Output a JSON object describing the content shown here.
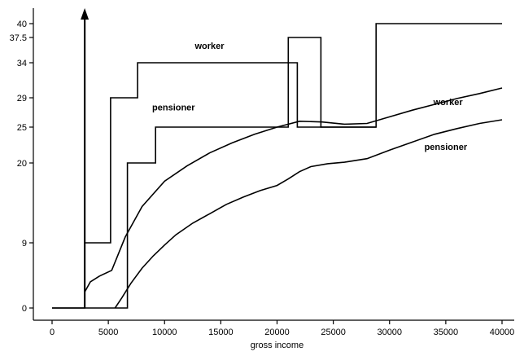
{
  "chart_data": {
    "type": "line",
    "title": "",
    "xlabel": "gross income",
    "ylabel": "",
    "xlim": [
      -200,
      40200
    ],
    "x_ticks": [
      0,
      5000,
      10000,
      15000,
      20000,
      25000,
      30000,
      35000,
      40000
    ],
    "x_tick_labels": [
      "0",
      "5000",
      "10000",
      "15000",
      "20000",
      "25000",
      "30000",
      "35000",
      "40000"
    ],
    "y_ticks": [
      0,
      9,
      20,
      25,
      29,
      34,
      37.5,
      40
    ],
    "y_tick_labels": [
      "0",
      "9",
      "20",
      "25",
      "29",
      "34",
      "37.5",
      "40"
    ],
    "grid": false,
    "series": [
      {
        "name": "worker",
        "kind": "marginal-step",
        "label_at": [
          14000,
          35.9
        ],
        "points": [
          [
            0,
            0
          ],
          [
            2900,
            0
          ],
          [
            2900,
            9
          ],
          [
            5200,
            9
          ],
          [
            5200,
            29
          ],
          [
            7600,
            29
          ],
          [
            7600,
            34
          ],
          [
            21800,
            34
          ],
          [
            21800,
            25
          ],
          [
            28800,
            25
          ],
          [
            28800,
            40
          ],
          [
            40000,
            40
          ]
        ]
      },
      {
        "name": "pensioner",
        "kind": "marginal-step",
        "label_at": [
          10800,
          27.3
        ],
        "points": [
          [
            0,
            0
          ],
          [
            6700,
            0
          ],
          [
            6700,
            20
          ],
          [
            9200,
            20
          ],
          [
            9200,
            25
          ],
          [
            21000,
            25
          ],
          [
            21000,
            37.5
          ],
          [
            23900,
            37.5
          ],
          [
            23900,
            25
          ],
          [
            28800,
            25
          ]
        ]
      },
      {
        "name": "worker",
        "kind": "average-curve",
        "label_at": [
          35200,
          28.0
        ],
        "points": [
          [
            2900,
            2.2
          ],
          [
            3400,
            3.6
          ],
          [
            4200,
            4.4
          ],
          [
            5300,
            5.2
          ],
          [
            6500,
            9.8
          ],
          [
            8000,
            14.0
          ],
          [
            10000,
            17.5
          ],
          [
            12000,
            19.6
          ],
          [
            14000,
            21.4
          ],
          [
            16000,
            22.8
          ],
          [
            18000,
            24.0
          ],
          [
            20000,
            25.0
          ],
          [
            22000,
            25.8
          ],
          [
            24000,
            25.7
          ],
          [
            26000,
            25.4
          ],
          [
            28000,
            25.5
          ],
          [
            30000,
            26.4
          ],
          [
            32000,
            27.3
          ],
          [
            34000,
            28.1
          ],
          [
            36000,
            28.9
          ],
          [
            38000,
            29.6
          ],
          [
            40000,
            30.4
          ]
        ]
      },
      {
        "name": "pensioner",
        "kind": "average-curve",
        "label_at": [
          35000,
          21.8
        ],
        "points": [
          [
            5600,
            0
          ],
          [
            6200,
            1.4
          ],
          [
            7000,
            3.4
          ],
          [
            8000,
            5.5
          ],
          [
            9000,
            7.2
          ],
          [
            10000,
            8.7
          ],
          [
            11000,
            10.1
          ],
          [
            12500,
            11.7
          ],
          [
            14000,
            13.0
          ],
          [
            15500,
            14.3
          ],
          [
            17000,
            15.3
          ],
          [
            18500,
            16.2
          ],
          [
            20000,
            16.9
          ],
          [
            21000,
            17.8
          ],
          [
            22000,
            18.8
          ],
          [
            23000,
            19.5
          ],
          [
            24500,
            19.9
          ],
          [
            26000,
            20.1
          ],
          [
            28000,
            20.6
          ],
          [
            30000,
            21.8
          ],
          [
            32000,
            22.9
          ],
          [
            34000,
            24.0
          ],
          [
            36000,
            24.8
          ],
          [
            38000,
            25.5
          ],
          [
            40000,
            26.0
          ]
        ]
      }
    ],
    "arrow": {
      "x": 2900,
      "from_y": 0,
      "to_y": 40
    }
  }
}
